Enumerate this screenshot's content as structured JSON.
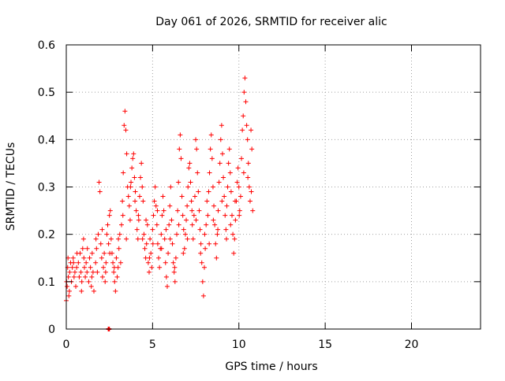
{
  "chart_data": {
    "type": "scatter",
    "title": "Day 061 of 2026, SRMTID for receiver alic",
    "xlabel": "GPS time / hours",
    "ylabel": "SRMTID / TECUs",
    "xlim": [
      0,
      24
    ],
    "ylim": [
      0,
      0.6
    ],
    "xticks": [
      0,
      5,
      10,
      15,
      20
    ],
    "xtick_labels": [
      "0",
      "5",
      "10",
      "15",
      "20"
    ],
    "yticks": [
      0,
      0.1,
      0.2,
      0.3,
      0.4,
      0.5,
      0.6
    ],
    "ytick_labels": [
      "0",
      "0.1",
      "0.2",
      "0.3",
      "0.4",
      "0.5",
      "0.6"
    ],
    "grid": true,
    "marker": "+",
    "series": [
      {
        "name": "SRMTID",
        "color": "#ff0000",
        "points": [
          [
            0.0,
            0.06
          ],
          [
            0.05,
            0.09
          ],
          [
            0.08,
            0.13
          ],
          [
            0.1,
            0.15
          ],
          [
            0.12,
            0.11
          ],
          [
            0.15,
            0.07
          ],
          [
            0.2,
            0.12
          ],
          [
            0.25,
            0.14
          ],
          [
            0.3,
            0.1
          ],
          [
            0.35,
            0.13
          ],
          [
            0.4,
            0.15
          ],
          [
            0.45,
            0.11
          ],
          [
            0.5,
            0.12
          ],
          [
            0.55,
            0.09
          ],
          [
            0.6,
            0.13
          ],
          [
            0.7,
            0.14
          ],
          [
            0.75,
            0.11
          ],
          [
            0.8,
            0.16
          ],
          [
            0.85,
            0.12
          ],
          [
            0.9,
            0.1
          ],
          [
            0.95,
            0.17
          ],
          [
            1.0,
            0.19
          ],
          [
            1.05,
            0.13
          ],
          [
            1.1,
            0.11
          ],
          [
            1.15,
            0.14
          ],
          [
            1.2,
            0.12
          ],
          [
            1.3,
            0.1
          ],
          [
            1.35,
            0.15
          ],
          [
            1.4,
            0.13
          ],
          [
            1.45,
            0.09
          ],
          [
            1.5,
            0.16
          ],
          [
            1.55,
            0.12
          ],
          [
            1.6,
            0.08
          ],
          [
            1.7,
            0.14
          ],
          [
            1.75,
            0.17
          ],
          [
            1.8,
            0.12
          ],
          [
            1.85,
            0.2
          ],
          [
            1.9,
            0.31
          ],
          [
            1.95,
            0.29
          ],
          [
            2.0,
            0.18
          ],
          [
            2.05,
            0.15
          ],
          [
            2.1,
            0.11
          ],
          [
            2.15,
            0.13
          ],
          [
            2.2,
            0.16
          ],
          [
            2.25,
            0.1
          ],
          [
            2.3,
            0.14
          ],
          [
            2.35,
            0.2
          ],
          [
            2.4,
            0.22
          ],
          [
            2.45,
            0.18
          ],
          [
            2.5,
            0.24
          ],
          [
            2.55,
            0.25
          ],
          [
            2.6,
            0.19
          ],
          [
            2.65,
            0.16
          ],
          [
            2.7,
            0.14
          ],
          [
            2.75,
            0.12
          ],
          [
            2.8,
            0.1
          ],
          [
            2.85,
            0.08
          ],
          [
            2.9,
            0.15
          ],
          [
            2.95,
            0.11
          ],
          [
            3.0,
            0.13
          ],
          [
            3.05,
            0.17
          ],
          [
            3.1,
            0.2
          ],
          [
            3.15,
            0.14
          ],
          [
            3.2,
            0.22
          ],
          [
            3.25,
            0.27
          ],
          [
            3.3,
            0.33
          ],
          [
            3.35,
            0.43
          ],
          [
            3.4,
            0.46
          ],
          [
            3.45,
            0.42
          ],
          [
            3.5,
            0.37
          ],
          [
            3.55,
            0.3
          ],
          [
            3.6,
            0.28
          ],
          [
            3.65,
            0.26
          ],
          [
            3.7,
            0.23
          ],
          [
            3.75,
            0.31
          ],
          [
            3.8,
            0.34
          ],
          [
            3.85,
            0.36
          ],
          [
            3.9,
            0.37
          ],
          [
            3.95,
            0.32
          ],
          [
            4.0,
            0.29
          ],
          [
            4.05,
            0.25
          ],
          [
            4.1,
            0.21
          ],
          [
            4.15,
            0.19
          ],
          [
            4.2,
            0.23
          ],
          [
            4.25,
            0.28
          ],
          [
            4.3,
            0.32
          ],
          [
            4.35,
            0.35
          ],
          [
            4.4,
            0.3
          ],
          [
            4.45,
            0.27
          ],
          [
            4.5,
            0.2
          ],
          [
            4.55,
            0.17
          ],
          [
            4.6,
            0.15
          ],
          [
            4.65,
            0.18
          ],
          [
            4.7,
            0.22
          ],
          [
            4.75,
            0.14
          ],
          [
            4.8,
            0.12
          ],
          [
            4.85,
            0.19
          ],
          [
            4.9,
            0.16
          ],
          [
            4.95,
            0.13
          ],
          [
            5.0,
            0.21
          ],
          [
            5.05,
            0.24
          ],
          [
            5.1,
            0.27
          ],
          [
            5.15,
            0.3
          ],
          [
            5.2,
            0.26
          ],
          [
            5.25,
            0.22
          ],
          [
            5.3,
            0.18
          ],
          [
            5.35,
            0.15
          ],
          [
            5.4,
            0.13
          ],
          [
            5.45,
            0.17
          ],
          [
            5.5,
            0.2
          ],
          [
            5.55,
            0.24
          ],
          [
            5.6,
            0.28
          ],
          [
            5.65,
            0.25
          ],
          [
            5.7,
            0.19
          ],
          [
            5.75,
            0.14
          ],
          [
            5.8,
            0.11
          ],
          [
            5.85,
            0.09
          ],
          [
            5.9,
            0.16
          ],
          [
            5.95,
            0.22
          ],
          [
            6.0,
            0.26
          ],
          [
            6.05,
            0.3
          ],
          [
            6.1,
            0.23
          ],
          [
            6.15,
            0.18
          ],
          [
            6.2,
            0.14
          ],
          [
            6.25,
            0.12
          ],
          [
            6.3,
            0.1
          ],
          [
            6.35,
            0.15
          ],
          [
            6.4,
            0.2
          ],
          [
            6.45,
            0.25
          ],
          [
            6.5,
            0.31
          ],
          [
            6.55,
            0.38
          ],
          [
            6.6,
            0.41
          ],
          [
            6.65,
            0.36
          ],
          [
            6.7,
            0.28
          ],
          [
            6.75,
            0.24
          ],
          [
            6.8,
            0.21
          ],
          [
            6.85,
            0.17
          ],
          [
            6.9,
            0.2
          ],
          [
            6.95,
            0.23
          ],
          [
            7.0,
            0.26
          ],
          [
            7.05,
            0.3
          ],
          [
            7.1,
            0.34
          ],
          [
            7.15,
            0.35
          ],
          [
            7.2,
            0.31
          ],
          [
            7.25,
            0.27
          ],
          [
            7.3,
            0.22
          ],
          [
            7.35,
            0.19
          ],
          [
            7.4,
            0.24
          ],
          [
            7.45,
            0.28
          ],
          [
            7.5,
            0.4
          ],
          [
            7.55,
            0.38
          ],
          [
            7.6,
            0.33
          ],
          [
            7.65,
            0.29
          ],
          [
            7.7,
            0.25
          ],
          [
            7.75,
            0.21
          ],
          [
            7.8,
            0.18
          ],
          [
            7.85,
            0.14
          ],
          [
            7.9,
            0.1
          ],
          [
            7.95,
            0.07
          ],
          [
            8.0,
            0.13
          ],
          [
            8.05,
            0.17
          ],
          [
            8.1,
            0.22
          ],
          [
            8.15,
            0.27
          ],
          [
            8.2,
            0.24
          ],
          [
            8.25,
            0.29
          ],
          [
            8.3,
            0.33
          ],
          [
            8.35,
            0.38
          ],
          [
            8.4,
            0.41
          ],
          [
            8.45,
            0.36
          ],
          [
            8.5,
            0.3
          ],
          [
            8.55,
            0.26
          ],
          [
            8.6,
            0.22
          ],
          [
            8.65,
            0.18
          ],
          [
            8.7,
            0.15
          ],
          [
            8.75,
            0.2
          ],
          [
            8.8,
            0.25
          ],
          [
            8.85,
            0.31
          ],
          [
            8.9,
            0.35
          ],
          [
            8.95,
            0.4
          ],
          [
            9.0,
            0.43
          ],
          [
            9.05,
            0.37
          ],
          [
            9.1,
            0.32
          ],
          [
            9.15,
            0.28
          ],
          [
            9.2,
            0.24
          ],
          [
            9.25,
            0.21
          ],
          [
            9.3,
            0.26
          ],
          [
            9.35,
            0.3
          ],
          [
            9.4,
            0.35
          ],
          [
            9.45,
            0.38
          ],
          [
            9.5,
            0.33
          ],
          [
            9.55,
            0.29
          ],
          [
            9.6,
            0.24
          ],
          [
            9.65,
            0.2
          ],
          [
            9.7,
            0.16
          ],
          [
            9.75,
            0.19
          ],
          [
            9.8,
            0.23
          ],
          [
            9.85,
            0.27
          ],
          [
            9.9,
            0.31
          ],
          [
            9.95,
            0.34
          ],
          [
            10.0,
            0.3
          ],
          [
            10.05,
            0.25
          ],
          [
            10.1,
            0.28
          ],
          [
            10.15,
            0.36
          ],
          [
            10.2,
            0.42
          ],
          [
            10.25,
            0.45
          ],
          [
            10.3,
            0.5
          ],
          [
            10.35,
            0.53
          ],
          [
            10.4,
            0.48
          ],
          [
            10.45,
            0.43
          ],
          [
            10.5,
            0.4
          ],
          [
            10.55,
            0.35
          ],
          [
            10.6,
            0.3
          ],
          [
            10.65,
            0.27
          ],
          [
            10.7,
            0.42
          ],
          [
            10.75,
            0.38
          ],
          [
            10.8,
            0.25
          ],
          [
            0.02,
            0.1
          ],
          [
            0.18,
            0.08
          ],
          [
            0.42,
            0.14
          ],
          [
            0.62,
            0.16
          ],
          [
            0.88,
            0.08
          ],
          [
            1.02,
            0.15
          ],
          [
            1.22,
            0.17
          ],
          [
            1.48,
            0.11
          ],
          [
            1.72,
            0.19
          ],
          [
            2.08,
            0.21
          ],
          [
            2.28,
            0.12
          ],
          [
            2.52,
            0.16
          ],
          [
            2.78,
            0.13
          ],
          [
            3.02,
            0.19
          ],
          [
            3.28,
            0.24
          ],
          [
            3.48,
            0.19
          ],
          [
            3.72,
            0.3
          ],
          [
            3.98,
            0.27
          ],
          [
            4.18,
            0.24
          ],
          [
            4.42,
            0.19
          ],
          [
            4.62,
            0.23
          ],
          [
            4.82,
            0.15
          ],
          [
            5.02,
            0.18
          ],
          [
            5.28,
            0.25
          ],
          [
            5.52,
            0.17
          ],
          [
            5.78,
            0.21
          ],
          [
            6.02,
            0.19
          ],
          [
            6.28,
            0.13
          ],
          [
            6.52,
            0.22
          ],
          [
            6.78,
            0.16
          ],
          [
            7.02,
            0.19
          ],
          [
            7.28,
            0.25
          ],
          [
            7.52,
            0.23
          ],
          [
            7.78,
            0.16
          ],
          [
            8.02,
            0.2
          ],
          [
            8.28,
            0.18
          ],
          [
            8.52,
            0.23
          ],
          [
            8.78,
            0.21
          ],
          [
            9.02,
            0.27
          ],
          [
            9.28,
            0.19
          ],
          [
            9.52,
            0.22
          ],
          [
            9.78,
            0.27
          ],
          [
            10.02,
            0.24
          ],
          [
            10.28,
            0.33
          ],
          [
            10.52,
            0.32
          ],
          [
            10.72,
            0.29
          ]
        ]
      }
    ],
    "isolated_points": [
      [
        2.45,
        0.0
      ],
      [
        2.48,
        0.0
      ]
    ]
  }
}
